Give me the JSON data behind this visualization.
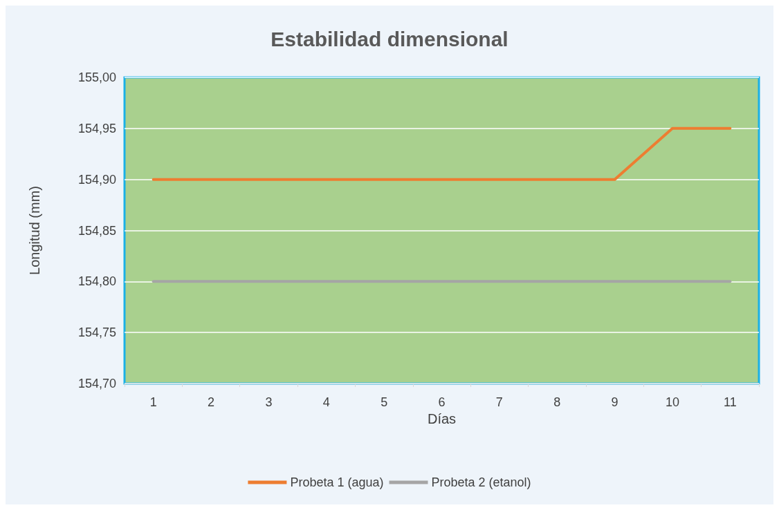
{
  "chart_data": {
    "type": "line",
    "title": "Estabilidad dimensional",
    "xlabel": "Días",
    "ylabel": "Longitud (mm)",
    "categories": [
      "1",
      "2",
      "3",
      "4",
      "5",
      "6",
      "7",
      "8",
      "9",
      "10",
      "11"
    ],
    "series": [
      {
        "name": "Probeta 1 (agua)",
        "color": "#ed7d31",
        "values": [
          154.9,
          154.9,
          154.9,
          154.9,
          154.9,
          154.9,
          154.9,
          154.9,
          154.9,
          154.95,
          154.95
        ]
      },
      {
        "name": "Probeta 2 (etanol)",
        "color": "#a5a5a5",
        "values": [
          154.8,
          154.8,
          154.8,
          154.8,
          154.8,
          154.8,
          154.8,
          154.8,
          154.8,
          154.8,
          154.8
        ]
      }
    ],
    "ylim": [
      154.7,
      155.0
    ],
    "yticks": [
      {
        "value": 154.7,
        "label": "154,70"
      },
      {
        "value": 154.75,
        "label": "154,75"
      },
      {
        "value": 154.8,
        "label": "154,80"
      },
      {
        "value": 154.85,
        "label": "154,85"
      },
      {
        "value": 154.9,
        "label": "154,90"
      },
      {
        "value": 154.95,
        "label": "154,95"
      },
      {
        "value": 155.0,
        "label": "155,00"
      }
    ],
    "grid": "y",
    "legend": "bottom",
    "marker": "none",
    "line_style": "solid"
  }
}
